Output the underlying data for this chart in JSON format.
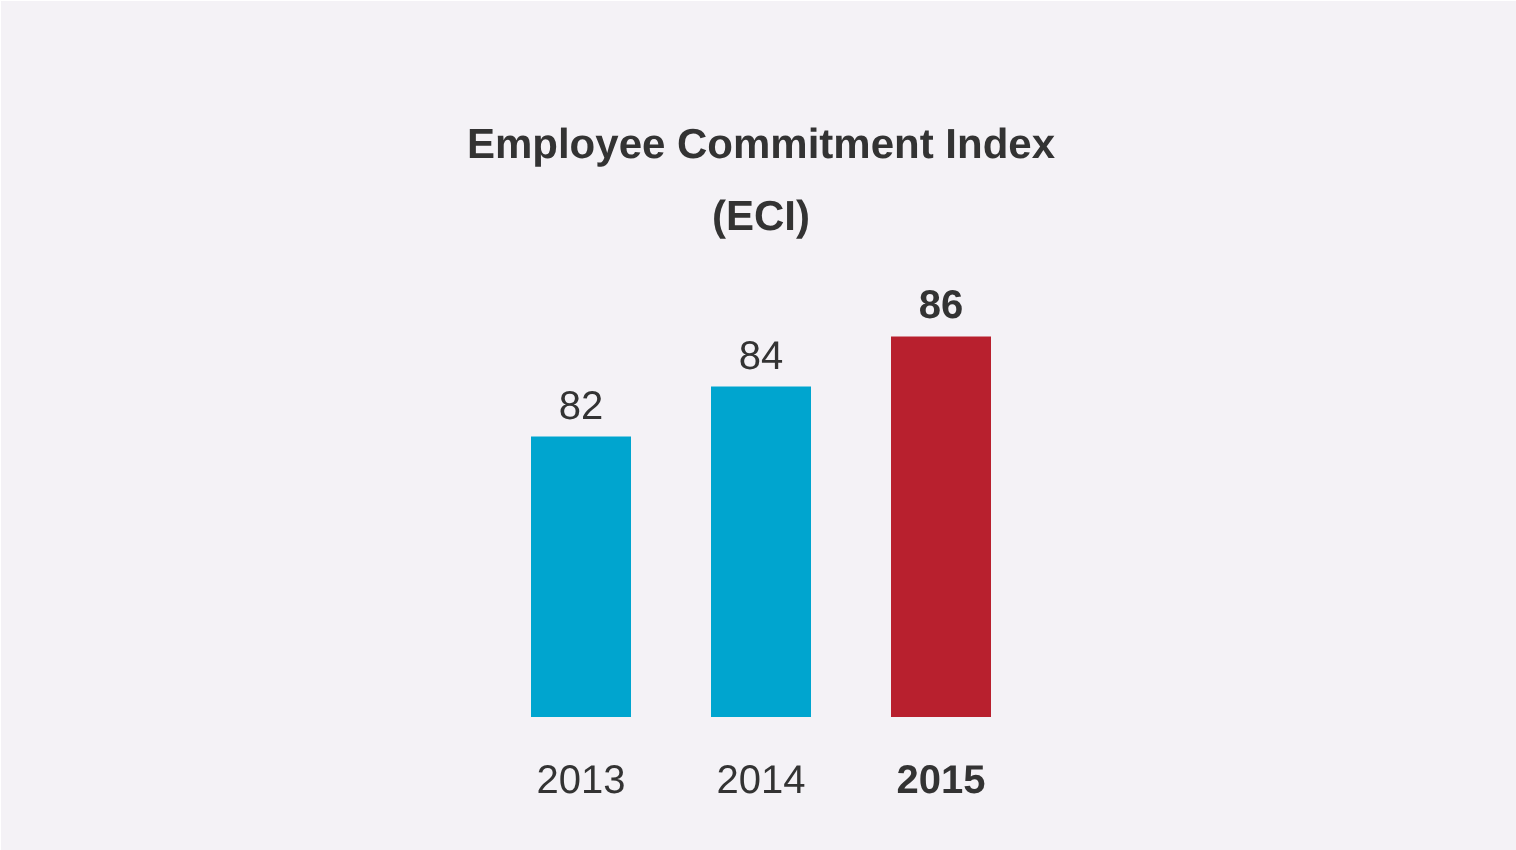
{
  "chart_data": {
    "type": "bar",
    "title": "Employee Commitment Index\n(ECI)",
    "categories": [
      "2013",
      "2014",
      "2015"
    ],
    "values": [
      82,
      84,
      86
    ],
    "colors": [
      "#00a5cf",
      "#00a5cf",
      "#b8202e"
    ],
    "data_labels": true,
    "ylim": [
      70.8,
      99.4
    ]
  }
}
